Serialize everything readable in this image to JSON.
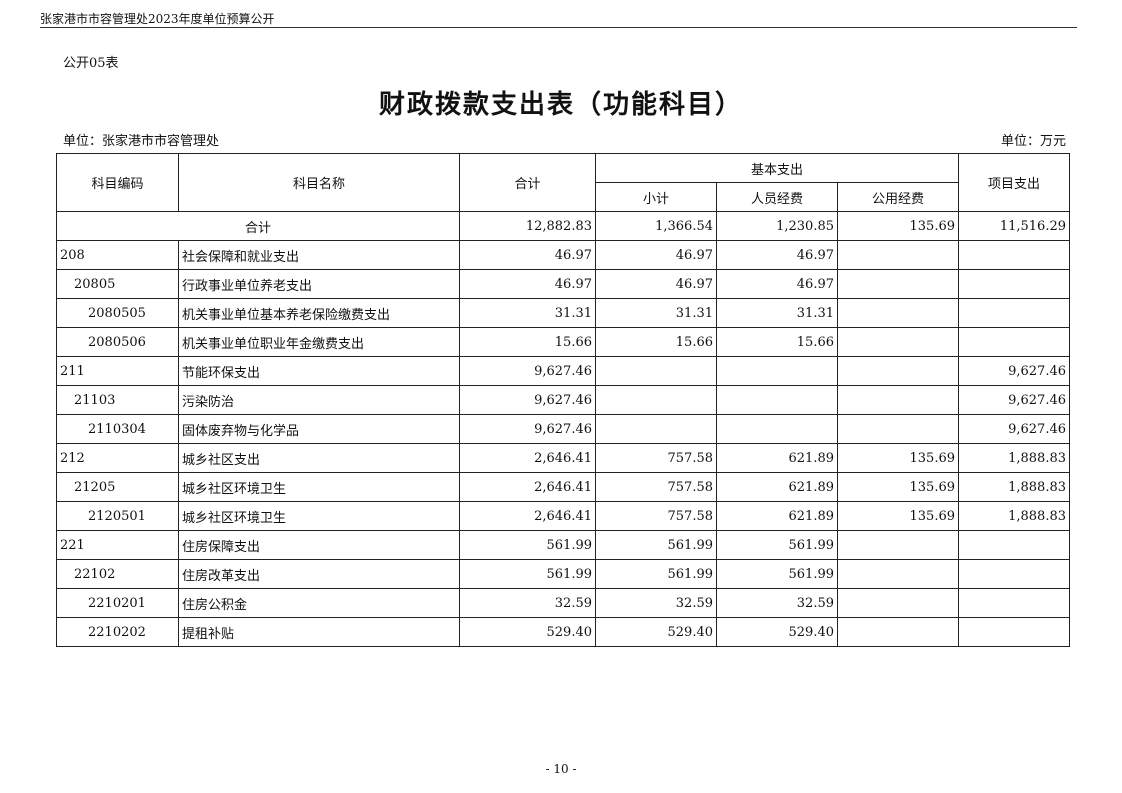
{
  "header": "张家港市市容管理处2023年度单位预算公开",
  "table_no": "公开05表",
  "title": "财政拨款支出表（功能科目）",
  "unit_left": "单位：张家港市市容管理处",
  "unit_right": "单位：万元",
  "columns": {
    "code": "科目编码",
    "name": "科目名称",
    "total": "合计",
    "basic": "基本支出",
    "subtotal": "小计",
    "personnel": "人员经费",
    "public": "公用经费",
    "project": "项目支出"
  },
  "total_row": {
    "label": "合计",
    "total": "12,882.83",
    "subtotal": "1,366.54",
    "personnel": "1,230.85",
    "public": "135.69",
    "project": "11,516.29"
  },
  "rows": [
    {
      "level": 1,
      "code": "208",
      "name": "社会保障和就业支出",
      "total": "46.97",
      "subtotal": "46.97",
      "personnel": "46.97",
      "public": "",
      "project": ""
    },
    {
      "level": 2,
      "code": "20805",
      "name": "行政事业单位养老支出",
      "total": "46.97",
      "subtotal": "46.97",
      "personnel": "46.97",
      "public": "",
      "project": ""
    },
    {
      "level": 3,
      "code": "2080505",
      "name": "机关事业单位基本养老保险缴费支出",
      "total": "31.31",
      "subtotal": "31.31",
      "personnel": "31.31",
      "public": "",
      "project": ""
    },
    {
      "level": 3,
      "code": "2080506",
      "name": "机关事业单位职业年金缴费支出",
      "total": "15.66",
      "subtotal": "15.66",
      "personnel": "15.66",
      "public": "",
      "project": ""
    },
    {
      "level": 1,
      "code": "211",
      "name": "节能环保支出",
      "total": "9,627.46",
      "subtotal": "",
      "personnel": "",
      "public": "",
      "project": "9,627.46"
    },
    {
      "level": 2,
      "code": "21103",
      "name": "污染防治",
      "total": "9,627.46",
      "subtotal": "",
      "personnel": "",
      "public": "",
      "project": "9,627.46"
    },
    {
      "level": 3,
      "code": "2110304",
      "name": "固体废弃物与化学品",
      "total": "9,627.46",
      "subtotal": "",
      "personnel": "",
      "public": "",
      "project": "9,627.46"
    },
    {
      "level": 1,
      "code": "212",
      "name": "城乡社区支出",
      "total": "2,646.41",
      "subtotal": "757.58",
      "personnel": "621.89",
      "public": "135.69",
      "project": "1,888.83"
    },
    {
      "level": 2,
      "code": "21205",
      "name": "城乡社区环境卫生",
      "total": "2,646.41",
      "subtotal": "757.58",
      "personnel": "621.89",
      "public": "135.69",
      "project": "1,888.83"
    },
    {
      "level": 3,
      "code": "2120501",
      "name": "城乡社区环境卫生",
      "total": "2,646.41",
      "subtotal": "757.58",
      "personnel": "621.89",
      "public": "135.69",
      "project": "1,888.83"
    },
    {
      "level": 1,
      "code": "221",
      "name": "住房保障支出",
      "total": "561.99",
      "subtotal": "561.99",
      "personnel": "561.99",
      "public": "",
      "project": ""
    },
    {
      "level": 2,
      "code": "22102",
      "name": "住房改革支出",
      "total": "561.99",
      "subtotal": "561.99",
      "personnel": "561.99",
      "public": "",
      "project": ""
    },
    {
      "level": 3,
      "code": "2210201",
      "name": "住房公积金",
      "total": "32.59",
      "subtotal": "32.59",
      "personnel": "32.59",
      "public": "",
      "project": ""
    },
    {
      "level": 3,
      "code": "2210202",
      "name": "提租补贴",
      "total": "529.40",
      "subtotal": "529.40",
      "personnel": "529.40",
      "public": "",
      "project": ""
    }
  ],
  "page_number": "- 10 -"
}
